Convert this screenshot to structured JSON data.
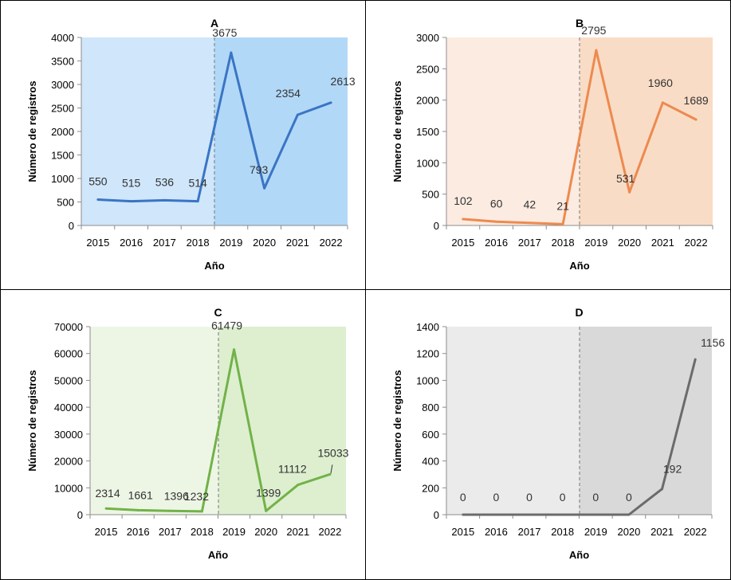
{
  "chart_data": [
    {
      "type": "line",
      "title": "A",
      "xlabel": "Año",
      "ylabel": "Número de registros",
      "categories": [
        "2015",
        "2016",
        "2017",
        "2018",
        "2019",
        "2020",
        "2021",
        "2022"
      ],
      "values": [
        550,
        515,
        536,
        514,
        3675,
        793,
        2354,
        2613
      ],
      "ylim": [
        0,
        4000
      ],
      "yticks": [
        0,
        500,
        1000,
        1500,
        2000,
        2500,
        3000,
        3500,
        4000
      ],
      "colors": {
        "line": "#3a75c4",
        "bg_left": "#cfe6fb",
        "bg_right": "#b2d8f7"
      }
    },
    {
      "type": "line",
      "title": "B",
      "xlabel": "Año",
      "ylabel": "Número de registros",
      "categories": [
        "2015",
        "2016",
        "2017",
        "2018",
        "2019",
        "2020",
        "2021",
        "2022"
      ],
      "values": [
        102,
        60,
        42,
        21,
        2795,
        531,
        1960,
        1689
      ],
      "ylim": [
        0,
        3000
      ],
      "yticks": [
        0,
        500,
        1000,
        1500,
        2000,
        2500,
        3000
      ],
      "colors": {
        "line": "#ed8a4f",
        "bg_left": "#fcebe1",
        "bg_right": "#f9dcc6"
      }
    },
    {
      "type": "line",
      "title": "C",
      "xlabel": "Año",
      "ylabel": "Número de registros",
      "categories": [
        "2015",
        "2016",
        "2017",
        "2018",
        "2019",
        "2020",
        "2021",
        "2022"
      ],
      "values": [
        2314,
        1661,
        1396,
        1232,
        61479,
        1399,
        11112,
        15033
      ],
      "ylim": [
        0,
        70000
      ],
      "yticks": [
        0,
        10000,
        20000,
        30000,
        40000,
        50000,
        60000,
        70000
      ],
      "colors": {
        "line": "#72b249",
        "bg_left": "#edf6e5",
        "bg_right": "#ddefcf"
      }
    },
    {
      "type": "line",
      "title": "D",
      "xlabel": "Año",
      "ylabel": "Número de registros",
      "categories": [
        "2015",
        "2016",
        "2017",
        "2018",
        "2019",
        "2020",
        "2021",
        "2022"
      ],
      "values": [
        0,
        0,
        0,
        0,
        0,
        0,
        192,
        1156
      ],
      "ylim": [
        0,
        1400
      ],
      "yticks": [
        0,
        200,
        400,
        600,
        800,
        1000,
        1200,
        1400
      ],
      "colors": {
        "line": "#6b6b6b",
        "bg_left": "#ebebeb",
        "bg_right": "#d9d9d9"
      }
    }
  ]
}
